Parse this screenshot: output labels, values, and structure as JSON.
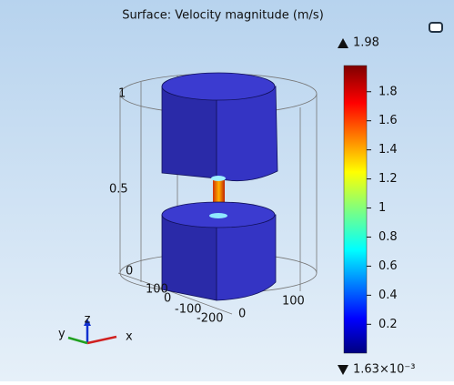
{
  "title": "Surface: Velocity magnitude (m/s)",
  "colorbar": {
    "max": 1.98,
    "min": {
      "value": 0.00163,
      "label": "1.63×10⁻³"
    },
    "ticks": [
      0.2,
      0.4,
      0.6,
      0.8,
      1,
      1.2,
      1.4,
      1.6,
      1.8
    ]
  },
  "axis_labels": {
    "z_ticks": [
      "1",
      "0.5",
      "0"
    ],
    "y_ticks": [
      "100",
      "0",
      "-100",
      "-200"
    ],
    "x_ticks": [
      "0",
      "100"
    ]
  },
  "triad": {
    "x": "x",
    "y": "y",
    "z": "z"
  }
}
